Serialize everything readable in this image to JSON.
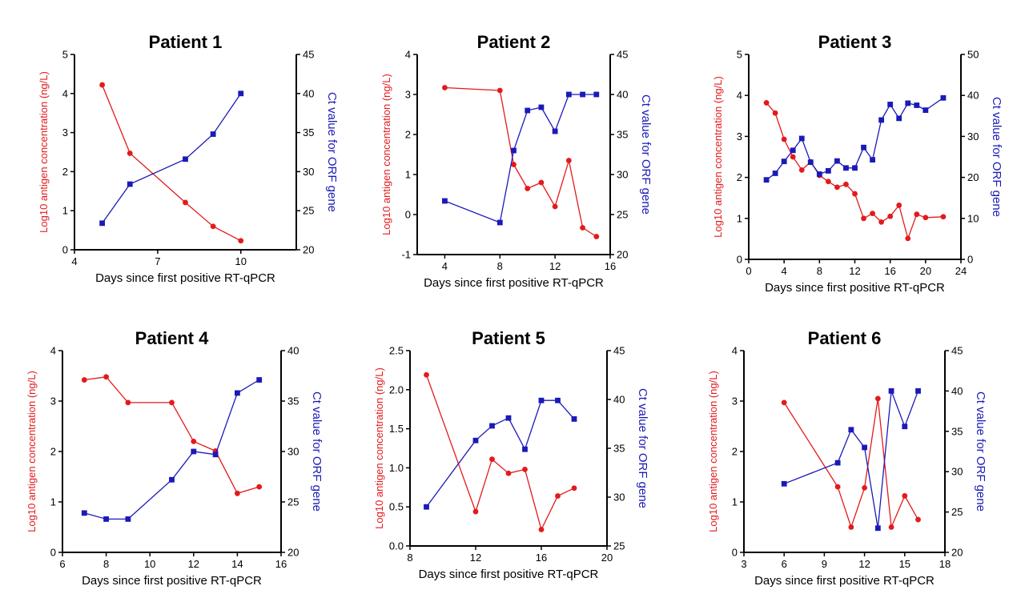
{
  "colors": {
    "antigen": "#e31a1c",
    "ct": "#1a1ab8",
    "axis": "#000000"
  },
  "chart_data": [
    {
      "type": "line",
      "title": "Patient 1",
      "xlabel": "Days since first positive RT-qPCR",
      "ylabel": "Log10 antigen concentration  (ng/L)",
      "y2label": "Ct value for ORF gene",
      "xlim": [
        4,
        12
      ],
      "xticks": [
        4,
        7,
        10
      ],
      "ylim": [
        0,
        5
      ],
      "yticks": [
        0,
        1,
        2,
        3,
        4,
        5
      ],
      "y2lim": [
        20,
        45
      ],
      "y2ticks": [
        20,
        25,
        30,
        35,
        40,
        45
      ],
      "series": [
        {
          "axis": "left",
          "marker": "circle",
          "x": [
            5,
            6,
            8,
            9,
            10
          ],
          "y": [
            4.22,
            2.47,
            1.21,
            0.6,
            0.23
          ]
        },
        {
          "axis": "right",
          "marker": "square",
          "x": [
            5,
            6,
            8,
            9,
            10
          ],
          "y": [
            23.4,
            28.4,
            31.6,
            34.8,
            40.0
          ]
        }
      ]
    },
    {
      "type": "line",
      "title": "Patient 2",
      "xlabel": "Days since first positive RT-qPCR",
      "ylabel": "Log10 antigen concentration  (ng/L)",
      "y2label": "Ct value for ORF gene",
      "xlim": [
        2,
        16
      ],
      "xticks": [
        4,
        8,
        12,
        16
      ],
      "ylim": [
        -1,
        4
      ],
      "yticks": [
        -1,
        0,
        1,
        2,
        3,
        4
      ],
      "y2lim": [
        20,
        45
      ],
      "y2ticks": [
        20,
        25,
        30,
        35,
        40,
        45
      ],
      "series": [
        {
          "axis": "left",
          "marker": "circle",
          "x": [
            4,
            8,
            9,
            10,
            11,
            12,
            13,
            14,
            15
          ],
          "y": [
            3.17,
            3.1,
            1.25,
            0.65,
            0.8,
            0.2,
            1.35,
            -0.33,
            -0.55
          ]
        },
        {
          "axis": "right",
          "marker": "square",
          "x": [
            4,
            8,
            9,
            10,
            11,
            12,
            13,
            14,
            15
          ],
          "y": [
            26.7,
            24.0,
            33.0,
            38.0,
            38.4,
            35.4,
            40.0,
            40.0,
            40.0
          ]
        }
      ]
    },
    {
      "type": "line",
      "title": "Patient 3",
      "xlabel": "Days since first positive RT-qPCR",
      "ylabel": "Log10 antigen concentration  (ng/L)",
      "y2label": "Ct value for ORF gene",
      "xlim": [
        0,
        24
      ],
      "xticks": [
        0,
        4,
        8,
        12,
        16,
        20,
        24
      ],
      "ylim": [
        0,
        5
      ],
      "yticks": [
        0,
        1,
        2,
        3,
        4,
        5
      ],
      "y2lim": [
        0,
        50
      ],
      "y2ticks": [
        0,
        10,
        20,
        30,
        40,
        50
      ],
      "series": [
        {
          "axis": "left",
          "marker": "circle",
          "x": [
            2,
            3,
            4,
            5,
            6,
            7,
            8,
            9,
            10,
            11,
            12,
            13,
            14,
            15,
            16,
            17,
            18,
            19,
            20,
            22
          ],
          "y": [
            3.82,
            3.57,
            2.93,
            2.5,
            2.18,
            2.38,
            2.05,
            1.9,
            1.76,
            1.83,
            1.6,
            1.0,
            1.12,
            0.91,
            1.05,
            1.32,
            0.51,
            1.1,
            1.02,
            1.04
          ]
        },
        {
          "axis": "right",
          "marker": "square",
          "x": [
            2,
            3,
            4,
            5,
            6,
            7,
            8,
            9,
            10,
            11,
            12,
            13,
            14,
            15,
            16,
            17,
            18,
            19,
            20,
            22
          ],
          "y": [
            19.4,
            21.0,
            23.9,
            26.6,
            29.5,
            23.7,
            20.8,
            21.6,
            24.0,
            22.3,
            22.3,
            27.3,
            24.3,
            34.0,
            37.8,
            34.4,
            38.1,
            37.6,
            36.4,
            39.4
          ]
        }
      ]
    },
    {
      "type": "line",
      "title": "Patient 4",
      "xlabel": "Days since first positive RT-qPCR",
      "ylabel": "Log10 antigen concentration  (ng/L)",
      "y2label": "Ct value for ORF gene",
      "xlim": [
        6,
        16
      ],
      "xticks": [
        6,
        8,
        10,
        12,
        14,
        16
      ],
      "ylim": [
        0,
        4
      ],
      "yticks": [
        0,
        1,
        2,
        3,
        4
      ],
      "y2lim": [
        20,
        40
      ],
      "y2ticks": [
        20,
        25,
        30,
        35,
        40
      ],
      "series": [
        {
          "axis": "left",
          "marker": "circle",
          "x": [
            7,
            8,
            9,
            11,
            12,
            13,
            14,
            15
          ],
          "y": [
            3.42,
            3.48,
            2.97,
            2.97,
            2.2,
            2.01,
            1.17,
            1.3
          ]
        },
        {
          "axis": "right",
          "marker": "square",
          "x": [
            7,
            8,
            9,
            11,
            12,
            13,
            14,
            15
          ],
          "y": [
            23.9,
            23.3,
            23.3,
            27.2,
            30.0,
            29.7,
            35.8,
            37.1
          ]
        }
      ]
    },
    {
      "type": "line",
      "title": "Patient 5",
      "xlabel": "Days since first positive RT-qPCR",
      "ylabel": "Log10 antigen concentration  (ng/L)",
      "y2label": "Ct value for ORF gene",
      "xlim": [
        8,
        20
      ],
      "xticks": [
        8,
        12,
        16,
        20
      ],
      "ylim": [
        0,
        2.5
      ],
      "yticks": [
        0.0,
        0.5,
        1.0,
        1.5,
        2.0,
        2.5
      ],
      "ytick_labels": [
        "0.0",
        "0.5",
        "1.0",
        "1.5",
        "2.0",
        "2.5"
      ],
      "y2lim": [
        25,
        45
      ],
      "y2ticks": [
        25,
        30,
        35,
        40,
        45
      ],
      "series": [
        {
          "axis": "left",
          "marker": "circle",
          "x": [
            9,
            12,
            13,
            14,
            15,
            16,
            17,
            18
          ],
          "y": [
            2.19,
            0.44,
            1.11,
            0.93,
            0.98,
            0.21,
            0.64,
            0.74
          ]
        },
        {
          "axis": "right",
          "marker": "square",
          "x": [
            9,
            12,
            13,
            14,
            15,
            16,
            17,
            18
          ],
          "y": [
            29.0,
            35.8,
            37.3,
            38.1,
            34.9,
            39.9,
            39.9,
            38.0
          ]
        }
      ]
    },
    {
      "type": "line",
      "title": "Patient 6",
      "xlabel": "Days since first positive RT-qPCR",
      "ylabel": "Log10 antigen concentration  (ng/L)",
      "y2label": "Ct value for ORF gene",
      "xlim": [
        3,
        18
      ],
      "xticks": [
        3,
        6,
        9,
        12,
        15,
        18
      ],
      "ylim": [
        0,
        4
      ],
      "yticks": [
        0,
        1,
        2,
        3,
        4
      ],
      "y2lim": [
        20,
        45
      ],
      "y2ticks": [
        20,
        25,
        30,
        35,
        40,
        45
      ],
      "series": [
        {
          "axis": "left",
          "marker": "circle",
          "x": [
            6,
            10,
            11,
            12,
            13,
            14,
            15,
            16
          ],
          "y": [
            2.97,
            1.3,
            0.5,
            1.28,
            3.05,
            0.5,
            1.12,
            0.65
          ]
        },
        {
          "axis": "right",
          "marker": "square",
          "x": [
            6,
            10,
            11,
            12,
            13,
            14,
            15,
            16
          ],
          "y": [
            28.5,
            31.1,
            35.2,
            33.0,
            23.0,
            40.0,
            35.6,
            40.0
          ]
        }
      ]
    }
  ]
}
